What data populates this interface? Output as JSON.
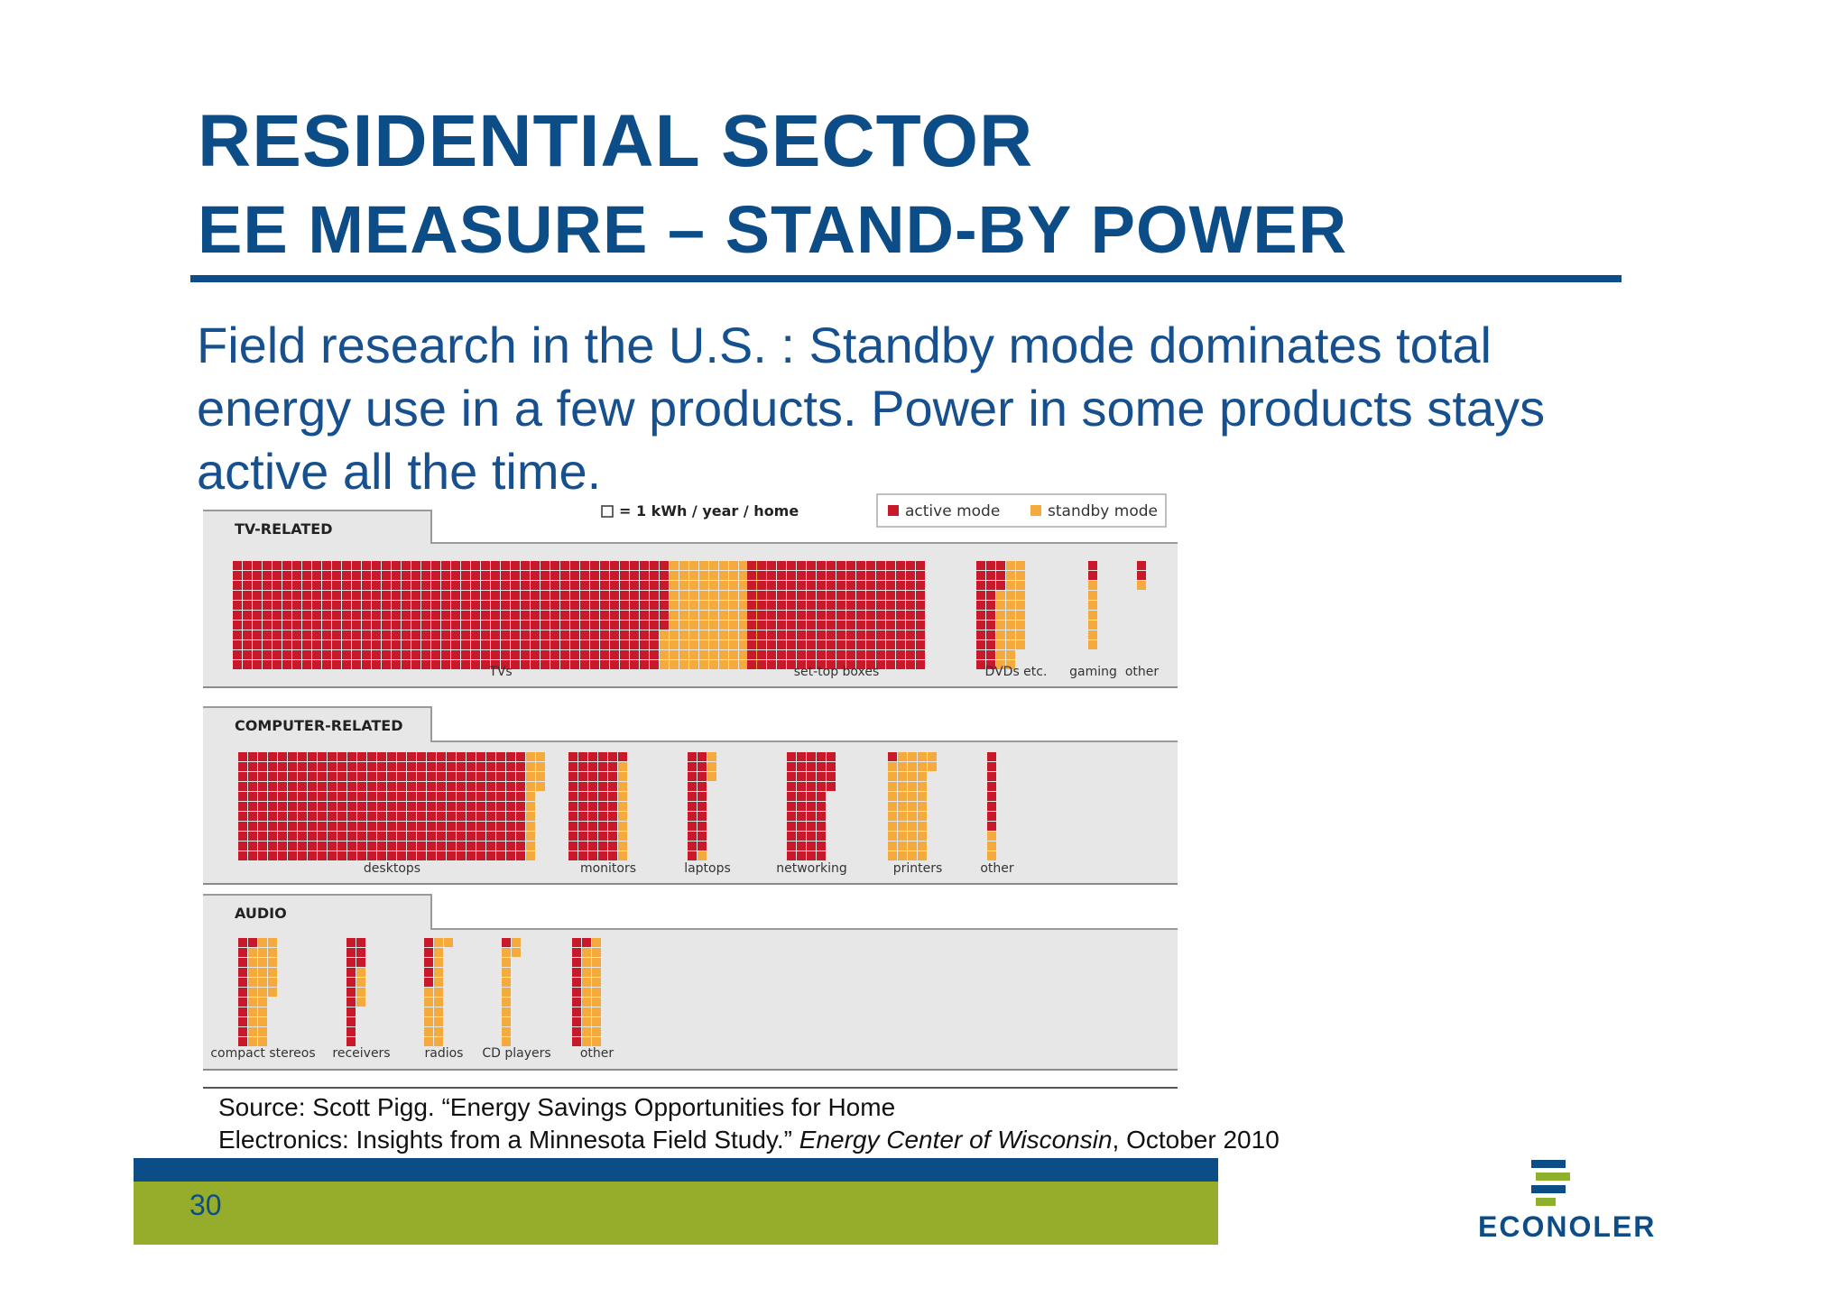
{
  "slide": {
    "title": "RESIDENTIAL SECTOR",
    "subtitle": "EE MEASURE – STAND-BY POWER",
    "body_lines": [
      "Field research in the U.S. : Standby mode dominates total",
      "energy use in a few products. Power in some products stays",
      "active all the time."
    ],
    "source_line1": "Source: Scott Pigg. “Energy Savings Opportunities for Home",
    "source_line2_a": "Electronics: Insights from a Minnesota Field Study.” ",
    "source_line2_italic": "Energy Center of Wisconsin",
    "source_line2_b": ", October 2010",
    "page_number": "30",
    "logo_text": "ECONOLER"
  },
  "colors": {
    "title": "#0d4d87",
    "active": "#c8192a",
    "standby": "#f5aa3d",
    "panel": "#e8e7e7",
    "footer_blue": "#0d4d87",
    "footer_green": "#96ad2c",
    "logo_green": "#8fb02c"
  },
  "chart_data": {
    "type": "waffle",
    "unit_label": "= 1 kWh / year / home",
    "legend": [
      {
        "name": "active mode",
        "color": "#c8192a"
      },
      {
        "name": "standby mode",
        "color": "#f5aa3d"
      }
    ],
    "legend_position": "top-right",
    "groups": [
      {
        "name": "TV-RELATED",
        "items": [
          {
            "label": "TVs",
            "active": 480,
            "standby": 110
          },
          {
            "label": "set-top boxes",
            "active": 198,
            "standby": 0
          },
          {
            "label": "DVDs etc.",
            "active": 25,
            "standby": 28
          },
          {
            "label": "gaming",
            "active": 2,
            "standby": 7
          },
          {
            "label": "other",
            "active": 2,
            "standby": 1
          }
        ]
      },
      {
        "name": "COMPUTER-RELATED",
        "items": [
          {
            "label": "desktops",
            "active": 319,
            "standby": 15
          },
          {
            "label": "monitors",
            "active": 56,
            "standby": 10
          },
          {
            "label": "laptops",
            "active": 21,
            "standby": 4
          },
          {
            "label": "networking",
            "active": 48,
            "standby": 0
          },
          {
            "label": "printers",
            "active": 1,
            "standby": 45
          },
          {
            "label": "other",
            "active": 8,
            "standby": 3
          }
        ]
      },
      {
        "name": "AUDIO",
        "items": [
          {
            "label": "compact stereos",
            "active": 12,
            "standby": 27
          },
          {
            "label": "receivers",
            "active": 14,
            "standby": 4
          },
          {
            "label": "radios",
            "active": 5,
            "standby": 18
          },
          {
            "label": "CD players",
            "active": 1,
            "standby": 12
          },
          {
            "label": "other",
            "active": 12,
            "standby": 21
          }
        ]
      }
    ]
  }
}
